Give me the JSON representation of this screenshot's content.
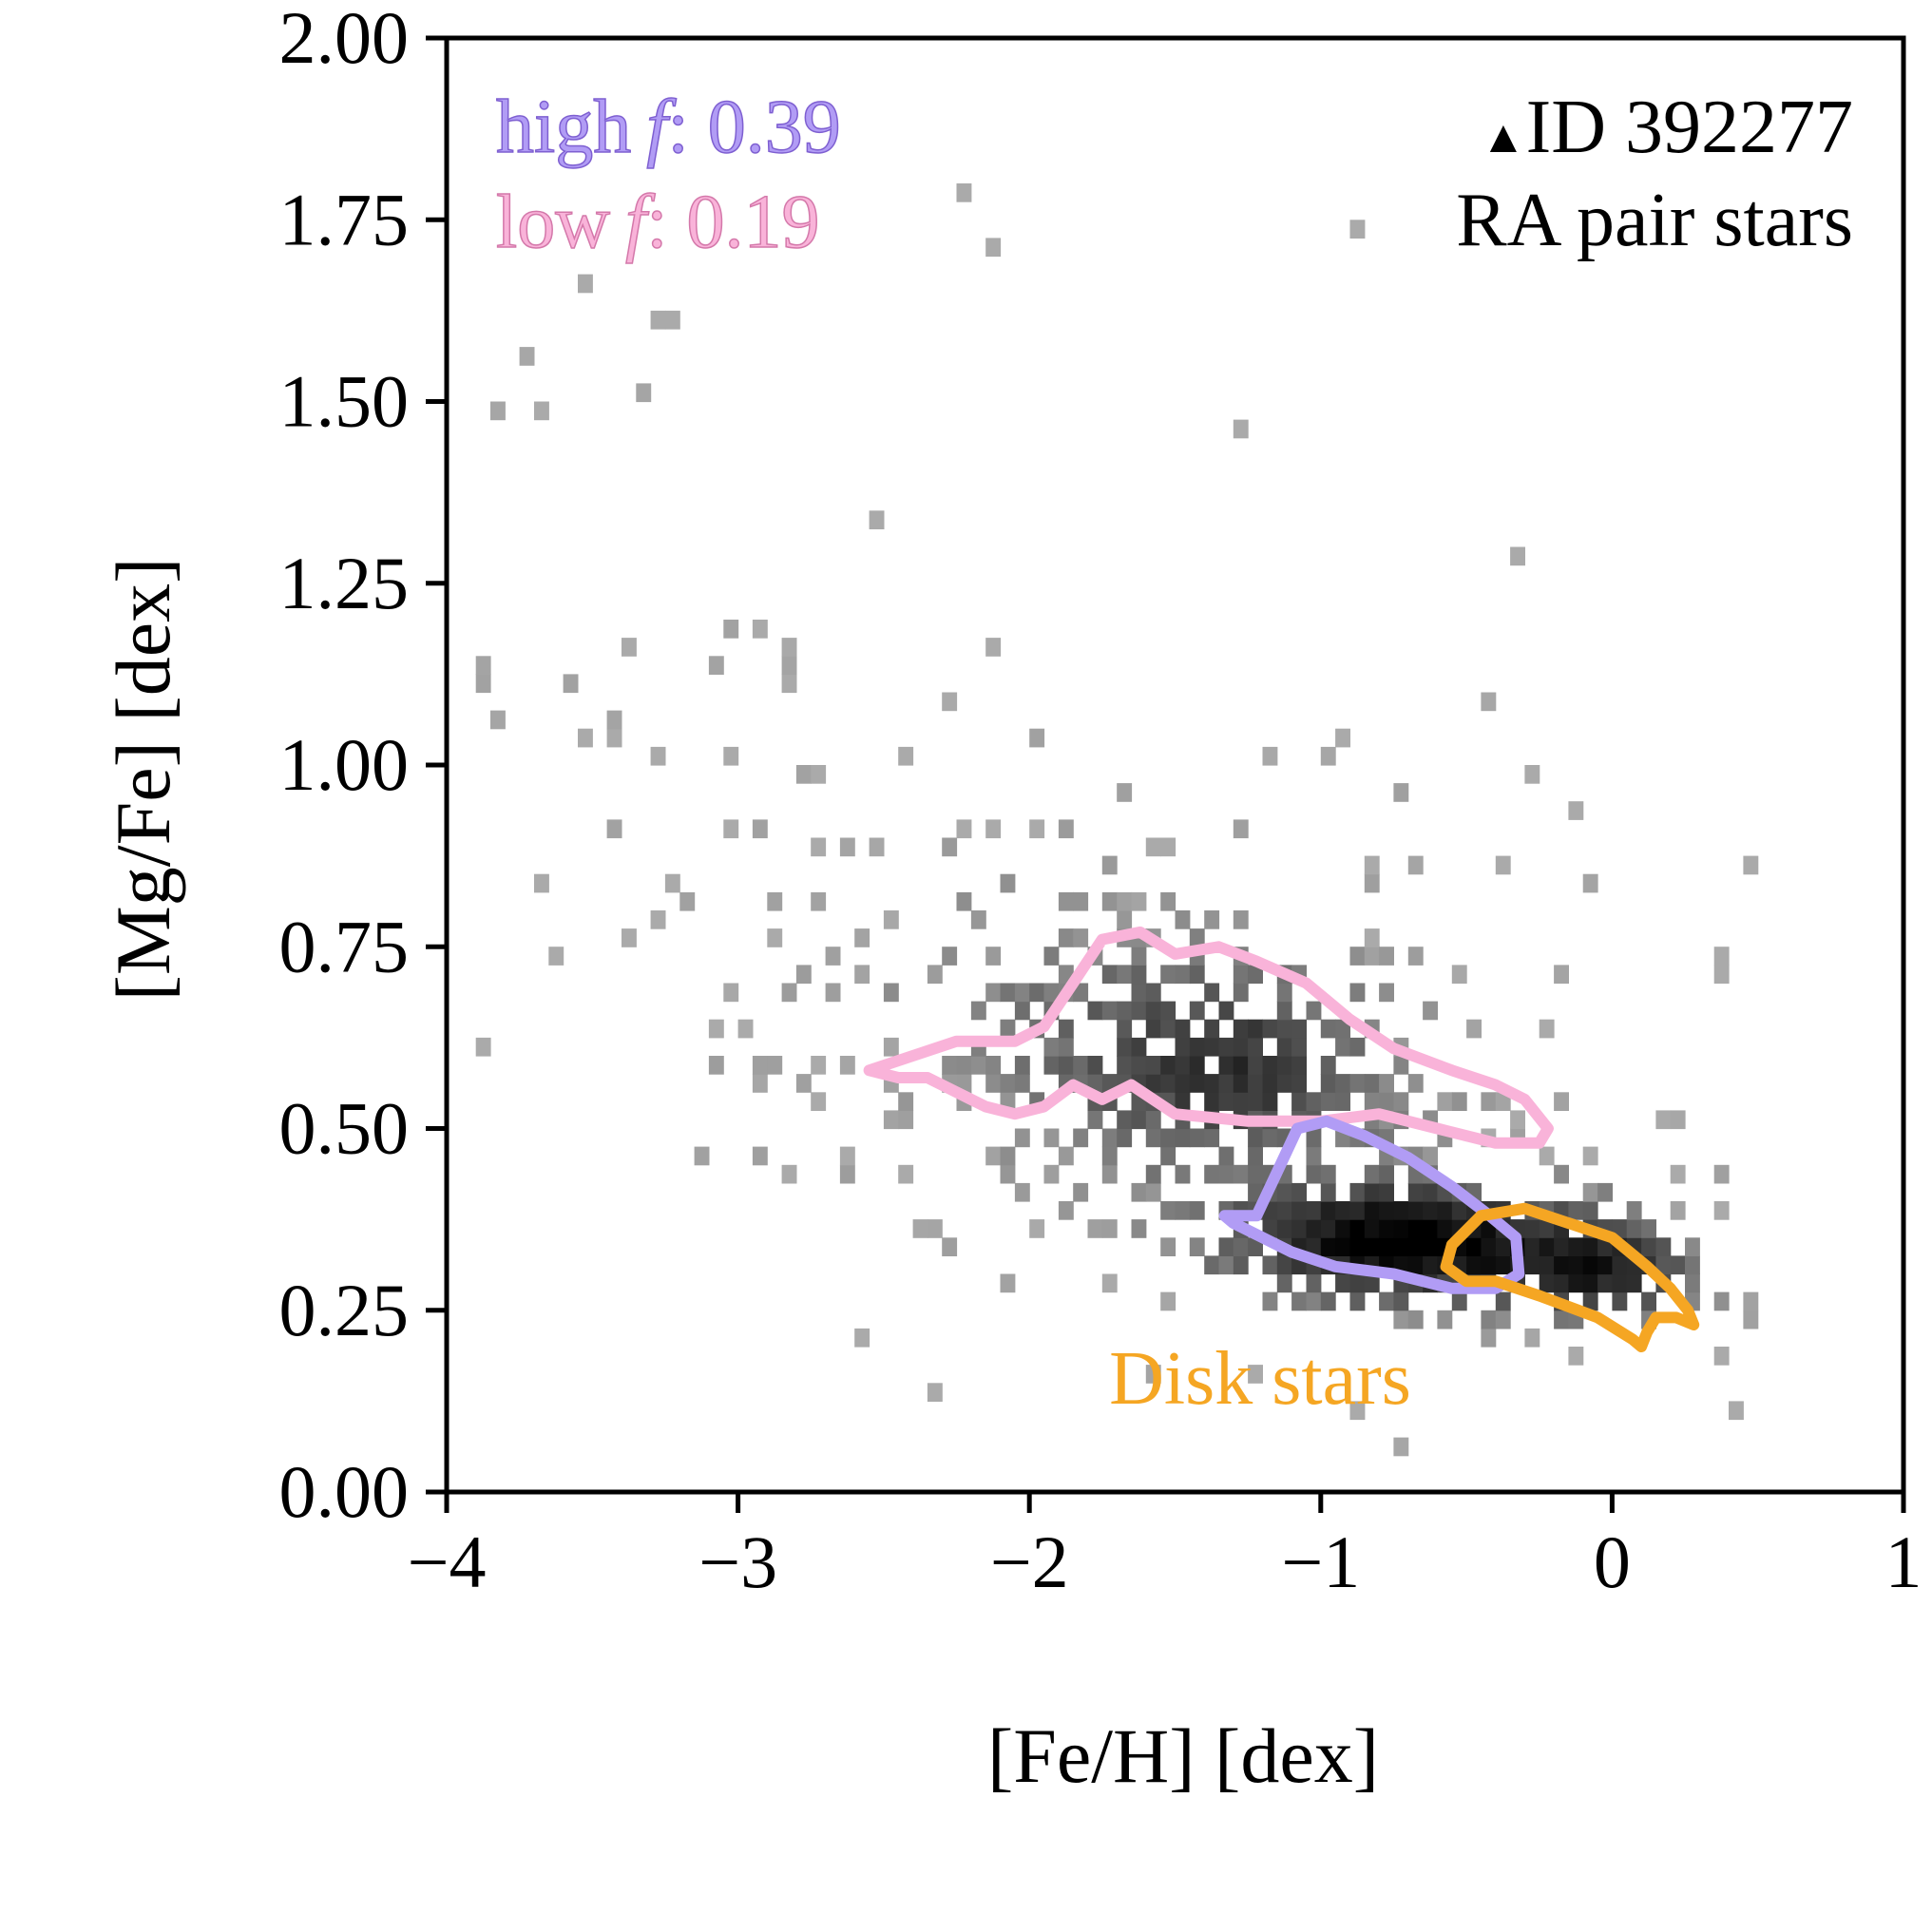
{
  "chart_data": {
    "type": "heatmap",
    "subtype": "2d-histogram-with-contours",
    "xlabel": "[Fe/H] [dex]",
    "ylabel": "[Mg/Fe] [dex]",
    "xlim": [
      -4,
      1
    ],
    "ylim": [
      0,
      2
    ],
    "x_ticks": [
      -4,
      -3,
      -2,
      -1,
      0,
      1
    ],
    "x_tick_labels": [
      "−4",
      "−3",
      "−2",
      "−1",
      "0",
      "1"
    ],
    "y_ticks": [
      0,
      0.25,
      0.5,
      0.75,
      1.0,
      1.25,
      1.5,
      1.75,
      2.0
    ],
    "y_tick_labels": [
      "0.00",
      "0.25",
      "0.50",
      "0.75",
      "1.00",
      "1.25",
      "1.50",
      "1.75",
      "2.00"
    ],
    "grid": false,
    "colormap": "greys",
    "annotations": {
      "high_label": "high",
      "high_f_symbol": "f",
      "high_value": ": 0.39",
      "low_label": "low",
      "low_f_symbol": "f",
      "low_value": ": 0.19",
      "marker_symbol": "▲",
      "id_text": "ID 392277",
      "pair_text": "RA pair stars",
      "disk_text": "Disk stars"
    },
    "contours": [
      {
        "name": "low f",
        "color": "#f9b3d9",
        "points": [
          [
            -2.55,
            0.58
          ],
          [
            -2.25,
            0.62
          ],
          [
            -2.05,
            0.62
          ],
          [
            -1.95,
            0.64
          ],
          [
            -1.85,
            0.7
          ],
          [
            -1.75,
            0.76
          ],
          [
            -1.62,
            0.77
          ],
          [
            -1.5,
            0.74
          ],
          [
            -1.35,
            0.75
          ],
          [
            -1.22,
            0.73
          ],
          [
            -1.05,
            0.7
          ],
          [
            -0.9,
            0.65
          ],
          [
            -0.75,
            0.61
          ],
          [
            -0.55,
            0.58
          ],
          [
            -0.4,
            0.56
          ],
          [
            -0.3,
            0.54
          ],
          [
            -0.22,
            0.5
          ],
          [
            -0.25,
            0.48
          ],
          [
            -0.4,
            0.48
          ],
          [
            -0.6,
            0.5
          ],
          [
            -0.8,
            0.52
          ],
          [
            -1.0,
            0.51
          ],
          [
            -1.25,
            0.51
          ],
          [
            -1.5,
            0.52
          ],
          [
            -1.65,
            0.56
          ],
          [
            -1.75,
            0.54
          ],
          [
            -1.85,
            0.56
          ],
          [
            -1.95,
            0.53
          ],
          [
            -2.05,
            0.52
          ],
          [
            -2.15,
            0.53
          ],
          [
            -2.25,
            0.55
          ],
          [
            -2.35,
            0.57
          ],
          [
            -2.45,
            0.57
          ]
        ]
      },
      {
        "name": "high f",
        "color": "#b19cf5",
        "points": [
          [
            -1.33,
            0.38
          ],
          [
            -1.22,
            0.38
          ],
          [
            -1.15,
            0.44
          ],
          [
            -1.08,
            0.5
          ],
          [
            -0.98,
            0.51
          ],
          [
            -0.85,
            0.49
          ],
          [
            -0.7,
            0.46
          ],
          [
            -0.55,
            0.42
          ],
          [
            -0.42,
            0.38
          ],
          [
            -0.33,
            0.35
          ],
          [
            -0.32,
            0.3
          ],
          [
            -0.4,
            0.28
          ],
          [
            -0.55,
            0.28
          ],
          [
            -0.75,
            0.3
          ],
          [
            -0.95,
            0.31
          ],
          [
            -1.1,
            0.33
          ],
          [
            -1.2,
            0.35
          ],
          [
            -1.3,
            0.37
          ]
        ]
      },
      {
        "name": "Disk stars",
        "color": "#f5a623",
        "points": [
          [
            -0.55,
            0.34
          ],
          [
            -0.45,
            0.38
          ],
          [
            -0.3,
            0.39
          ],
          [
            -0.15,
            0.37
          ],
          [
            0.0,
            0.35
          ],
          [
            0.12,
            0.31
          ],
          [
            0.2,
            0.28
          ],
          [
            0.26,
            0.25
          ],
          [
            0.28,
            0.23
          ],
          [
            0.22,
            0.24
          ],
          [
            0.15,
            0.24
          ],
          [
            0.12,
            0.22
          ],
          [
            0.1,
            0.2
          ],
          [
            0.07,
            0.21
          ],
          [
            -0.05,
            0.24
          ],
          [
            -0.25,
            0.27
          ],
          [
            -0.4,
            0.29
          ],
          [
            -0.5,
            0.29
          ],
          [
            -0.57,
            0.31
          ]
        ]
      }
    ]
  }
}
